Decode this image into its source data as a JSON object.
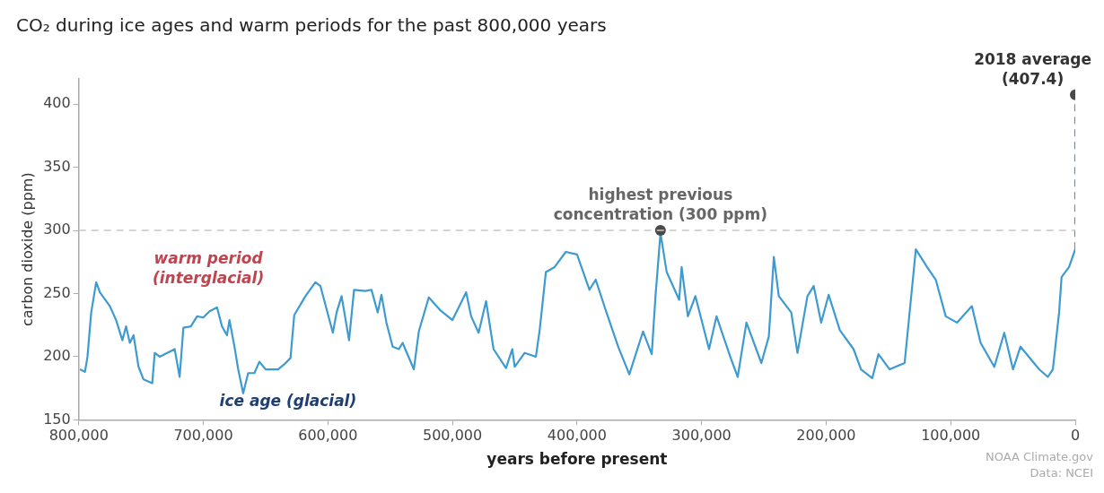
{
  "chart_data": {
    "type": "line",
    "title": "CO₂ during ice ages and warm periods for the past 800,000 years",
    "xlabel": "years before present",
    "ylabel": "carbon dioxide (ppm)",
    "xlim": [
      800000,
      0
    ],
    "xticks": [
      {
        "value": 800000,
        "label": "800,000"
      },
      {
        "value": 700000,
        "label": "700,000"
      },
      {
        "value": 600000,
        "label": "600,000"
      },
      {
        "value": 500000,
        "label": "500,000"
      },
      {
        "value": 400000,
        "label": "400,000"
      },
      {
        "value": 300000,
        "label": "300,000"
      },
      {
        "value": 200000,
        "label": "200,000"
      },
      {
        "value": 100000,
        "label": "100,000"
      },
      0
    ],
    "ylim": [
      150,
      420
    ],
    "yticks": [
      150,
      200,
      250,
      300,
      350,
      400
    ],
    "grid": false,
    "legend": false,
    "marker": "none",
    "series": [
      {
        "color": "#3d9bd1",
        "x": [
          799000,
          795000,
          793000,
          790000,
          786000,
          783000,
          775000,
          770000,
          765000,
          762000,
          759000,
          756000,
          752000,
          748000,
          741000,
          739000,
          735000,
          723000,
          719000,
          716000,
          710000,
          705000,
          700000,
          695000,
          689000,
          685000,
          681000,
          679000,
          675000,
          672000,
          668000,
          664000,
          659000,
          655000,
          650000,
          640000,
          635000,
          630000,
          627000,
          618000,
          610000,
          606000,
          596000,
          593000,
          589000,
          583000,
          579000,
          570000,
          565000,
          560000,
          557000,
          553000,
          548000,
          543000,
          540000,
          531000,
          527000,
          519000,
          510000,
          500000,
          489000,
          485000,
          479000,
          473000,
          467000,
          457000,
          452000,
          450000,
          442000,
          433000,
          430000,
          425000,
          418000,
          409000,
          400000,
          390000,
          385000,
          377000,
          367000,
          358000,
          347000,
          340000,
          337000,
          333000,
          328000,
          318000,
          316000,
          311000,
          305000,
          294000,
          288000,
          277000,
          271000,
          264000,
          252000,
          246000,
          242000,
          238000,
          228000,
          223000,
          215000,
          210000,
          204000,
          198000,
          189000,
          178000,
          172000,
          163000,
          158000,
          149000,
          137000,
          128000,
          119000,
          112000,
          104000,
          95000,
          83000,
          76000,
          65000,
          57000,
          50000,
          44000,
          29000,
          22000,
          18000,
          13000,
          11000,
          5000,
          0
        ],
        "values": [
          190,
          188,
          200,
          235,
          259,
          251,
          240,
          229,
          213,
          224,
          211,
          217,
          192,
          182,
          179,
          203,
          200,
          206,
          184,
          223,
          224,
          232,
          231,
          236,
          239,
          224,
          217,
          229,
          208,
          190,
          171,
          187,
          187,
          196,
          190,
          190,
          194,
          199,
          233,
          248,
          259,
          256,
          219,
          235,
          248,
          213,
          253,
          252,
          253,
          235,
          249,
          227,
          208,
          206,
          211,
          190,
          220,
          247,
          237,
          229,
          251,
          232,
          219,
          244,
          206,
          191,
          206,
          192,
          203,
          200,
          221,
          267,
          271,
          283,
          281,
          253,
          261,
          237,
          208,
          186,
          220,
          202,
          248,
          298,
          267,
          245,
          271,
          232,
          248,
          206,
          232,
          200,
          184,
          227,
          195,
          216,
          279,
          248,
          235,
          203,
          248,
          256,
          227,
          249,
          221,
          206,
          190,
          183,
          202,
          190,
          195,
          285,
          271,
          261,
          232,
          227,
          240,
          211,
          192,
          219,
          190,
          208,
          190,
          184,
          190,
          235,
          263,
          271,
          285
        ]
      },
      {
        "color": "#3d9bd1",
        "line_style": "dashed",
        "x": [
          0,
          0
        ],
        "values": [
          285,
          407.4
        ]
      },
      {
        "type": "scatter",
        "marker": "circle",
        "color": "#4a4a4a",
        "x": [
          333000,
          0
        ],
        "values": [
          300,
          407.4
        ]
      }
    ],
    "ref_lines": [
      {
        "axis": "y",
        "value": 300,
        "color": "#c8c8c8",
        "line_style": "dashed"
      }
    ],
    "annotations": [
      {
        "text": "highest previous\nconcentration (300 ppm)",
        "x": 333000,
        "y": 300
      },
      {
        "text": "2018 average\n(407.4)",
        "x": 0,
        "y": 407.4
      },
      "warm period\n(interglacial)",
      "ice age (glacial)",
      "NOAA Climate.gov",
      "Data: NCEI"
    ]
  }
}
